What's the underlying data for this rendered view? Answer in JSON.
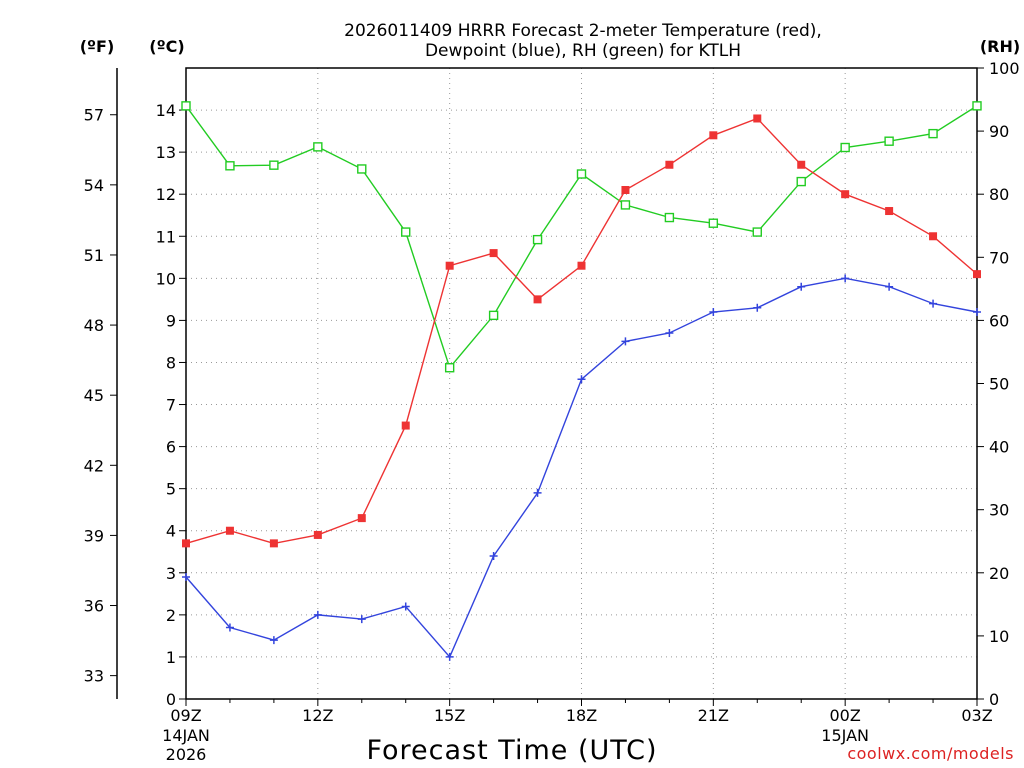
{
  "chart_data": {
    "type": "line",
    "title_line1": "2026011409 HRRR Forecast 2-meter Temperature (red),",
    "title_line2": "Dewpoint (blue), RH (green) for KTLH",
    "xlabel": "Forecast Time (UTC)",
    "unit_f": "(ºF)",
    "unit_c": "(ºC)",
    "unit_rh": "(RH)",
    "watermark": "coolwx.com/models",
    "x_hours": [
      0,
      1,
      2,
      3,
      4,
      5,
      6,
      7,
      8,
      9,
      10,
      11,
      12,
      13,
      14,
      15,
      16,
      17,
      18
    ],
    "x_range": [
      0,
      18
    ],
    "c_range": [
      0,
      15
    ],
    "rh_range": [
      0,
      100
    ],
    "f_range": [
      32,
      59
    ],
    "x_ticks": [
      {
        "h": 0,
        "label": "09Z",
        "date1": "14JAN",
        "date2": "2026"
      },
      {
        "h": 3,
        "label": "12Z",
        "date1": "",
        "date2": ""
      },
      {
        "h": 6,
        "label": "15Z",
        "date1": "",
        "date2": ""
      },
      {
        "h": 9,
        "label": "18Z",
        "date1": "",
        "date2": ""
      },
      {
        "h": 12,
        "label": "21Z",
        "date1": "",
        "date2": ""
      },
      {
        "h": 15,
        "label": "00Z",
        "date1": "15JAN",
        "date2": ""
      },
      {
        "h": 18,
        "label": "03Z",
        "date1": "",
        "date2": ""
      }
    ],
    "c_ticks": [
      "0",
      "1",
      "2",
      "3",
      "4",
      "5",
      "6",
      "7",
      "8",
      "9",
      "10",
      "11",
      "12",
      "13",
      "14"
    ],
    "f_ticks": [
      "33",
      "36",
      "39",
      "42",
      "45",
      "48",
      "51",
      "54",
      "57"
    ],
    "rh_ticks": [
      "0",
      "10",
      "20",
      "30",
      "40",
      "50",
      "60",
      "70",
      "80",
      "90",
      "100"
    ],
    "series": [
      {
        "name": "Temperature",
        "color": "#ee3333",
        "marker": "filled-square",
        "values": [
          3.7,
          4.0,
          3.7,
          3.9,
          4.3,
          6.5,
          10.3,
          10.6,
          9.5,
          10.3,
          12.1,
          12.7,
          13.4,
          13.8,
          12.7,
          12.0,
          11.6,
          11.0,
          10.1
        ]
      },
      {
        "name": "Dewpoint",
        "color": "#3344dd",
        "marker": "plus",
        "values": [
          2.9,
          1.7,
          1.4,
          2.0,
          1.9,
          2.2,
          1.0,
          3.4,
          4.9,
          7.6,
          8.5,
          8.7,
          9.2,
          9.3,
          9.8,
          10.0,
          9.8,
          9.4,
          9.2
        ]
      },
      {
        "name": "RH",
        "color": "#22cc22",
        "marker": "open-square",
        "axis": "rh",
        "values": [
          94,
          84.5,
          84.6,
          87.5,
          84,
          74,
          52.5,
          60.8,
          72.8,
          83.2,
          78.3,
          76.3,
          75.4,
          74,
          82,
          87.4,
          88.4,
          89.6,
          94
        ]
      }
    ]
  }
}
